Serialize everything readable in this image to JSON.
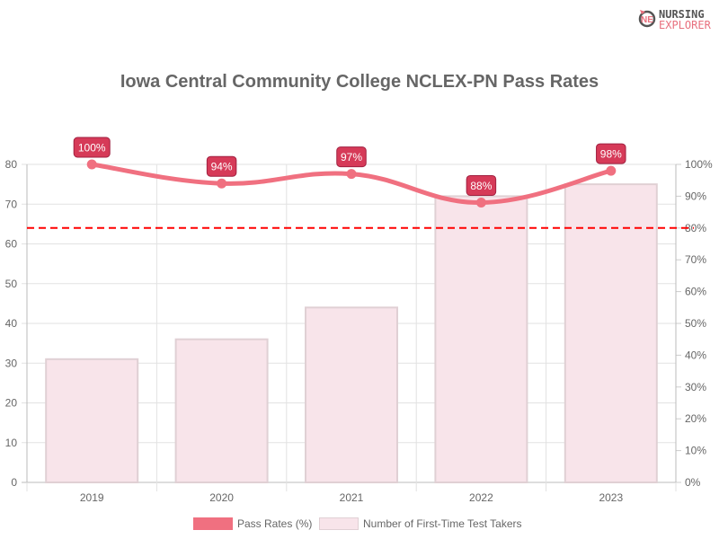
{
  "logo": {
    "line1": "NURSING",
    "line2": "EXPLORER"
  },
  "chart_data": {
    "type": "bar+line",
    "title": "Iowa Central Community College NCLEX-PN Pass Rates",
    "categories": [
      "2019",
      "2020",
      "2021",
      "2022",
      "2023"
    ],
    "series": [
      {
        "name": "Pass Rates (%)",
        "type": "line",
        "axis": "right",
        "values": [
          100,
          94,
          97,
          88,
          98
        ],
        "labels": [
          "100%",
          "94%",
          "97%",
          "88%",
          "98%"
        ],
        "color": "#f07080"
      },
      {
        "name": "Number of First-Time Test Takers",
        "type": "bar",
        "axis": "left",
        "values": [
          31,
          36,
          44,
          72,
          75
        ],
        "color": "#f8e4ea",
        "border": "#e0d0d4"
      }
    ],
    "left_axis": {
      "min": 0,
      "max": 80,
      "ticks": [
        "0",
        "10",
        "20",
        "30",
        "40",
        "50",
        "60",
        "70",
        "80"
      ]
    },
    "right_axis": {
      "min": 0,
      "max": 100,
      "ticks": [
        "0%",
        "10%",
        "20%",
        "30%",
        "40%",
        "50%",
        "60%",
        "70%",
        "80%",
        "90%",
        "100%"
      ]
    },
    "reference_line": {
      "value": 80,
      "axis": "right",
      "style": "dashed",
      "color": "#ff0000"
    },
    "label_color": "#d63a58",
    "grid": true,
    "legend_position": "bottom"
  }
}
